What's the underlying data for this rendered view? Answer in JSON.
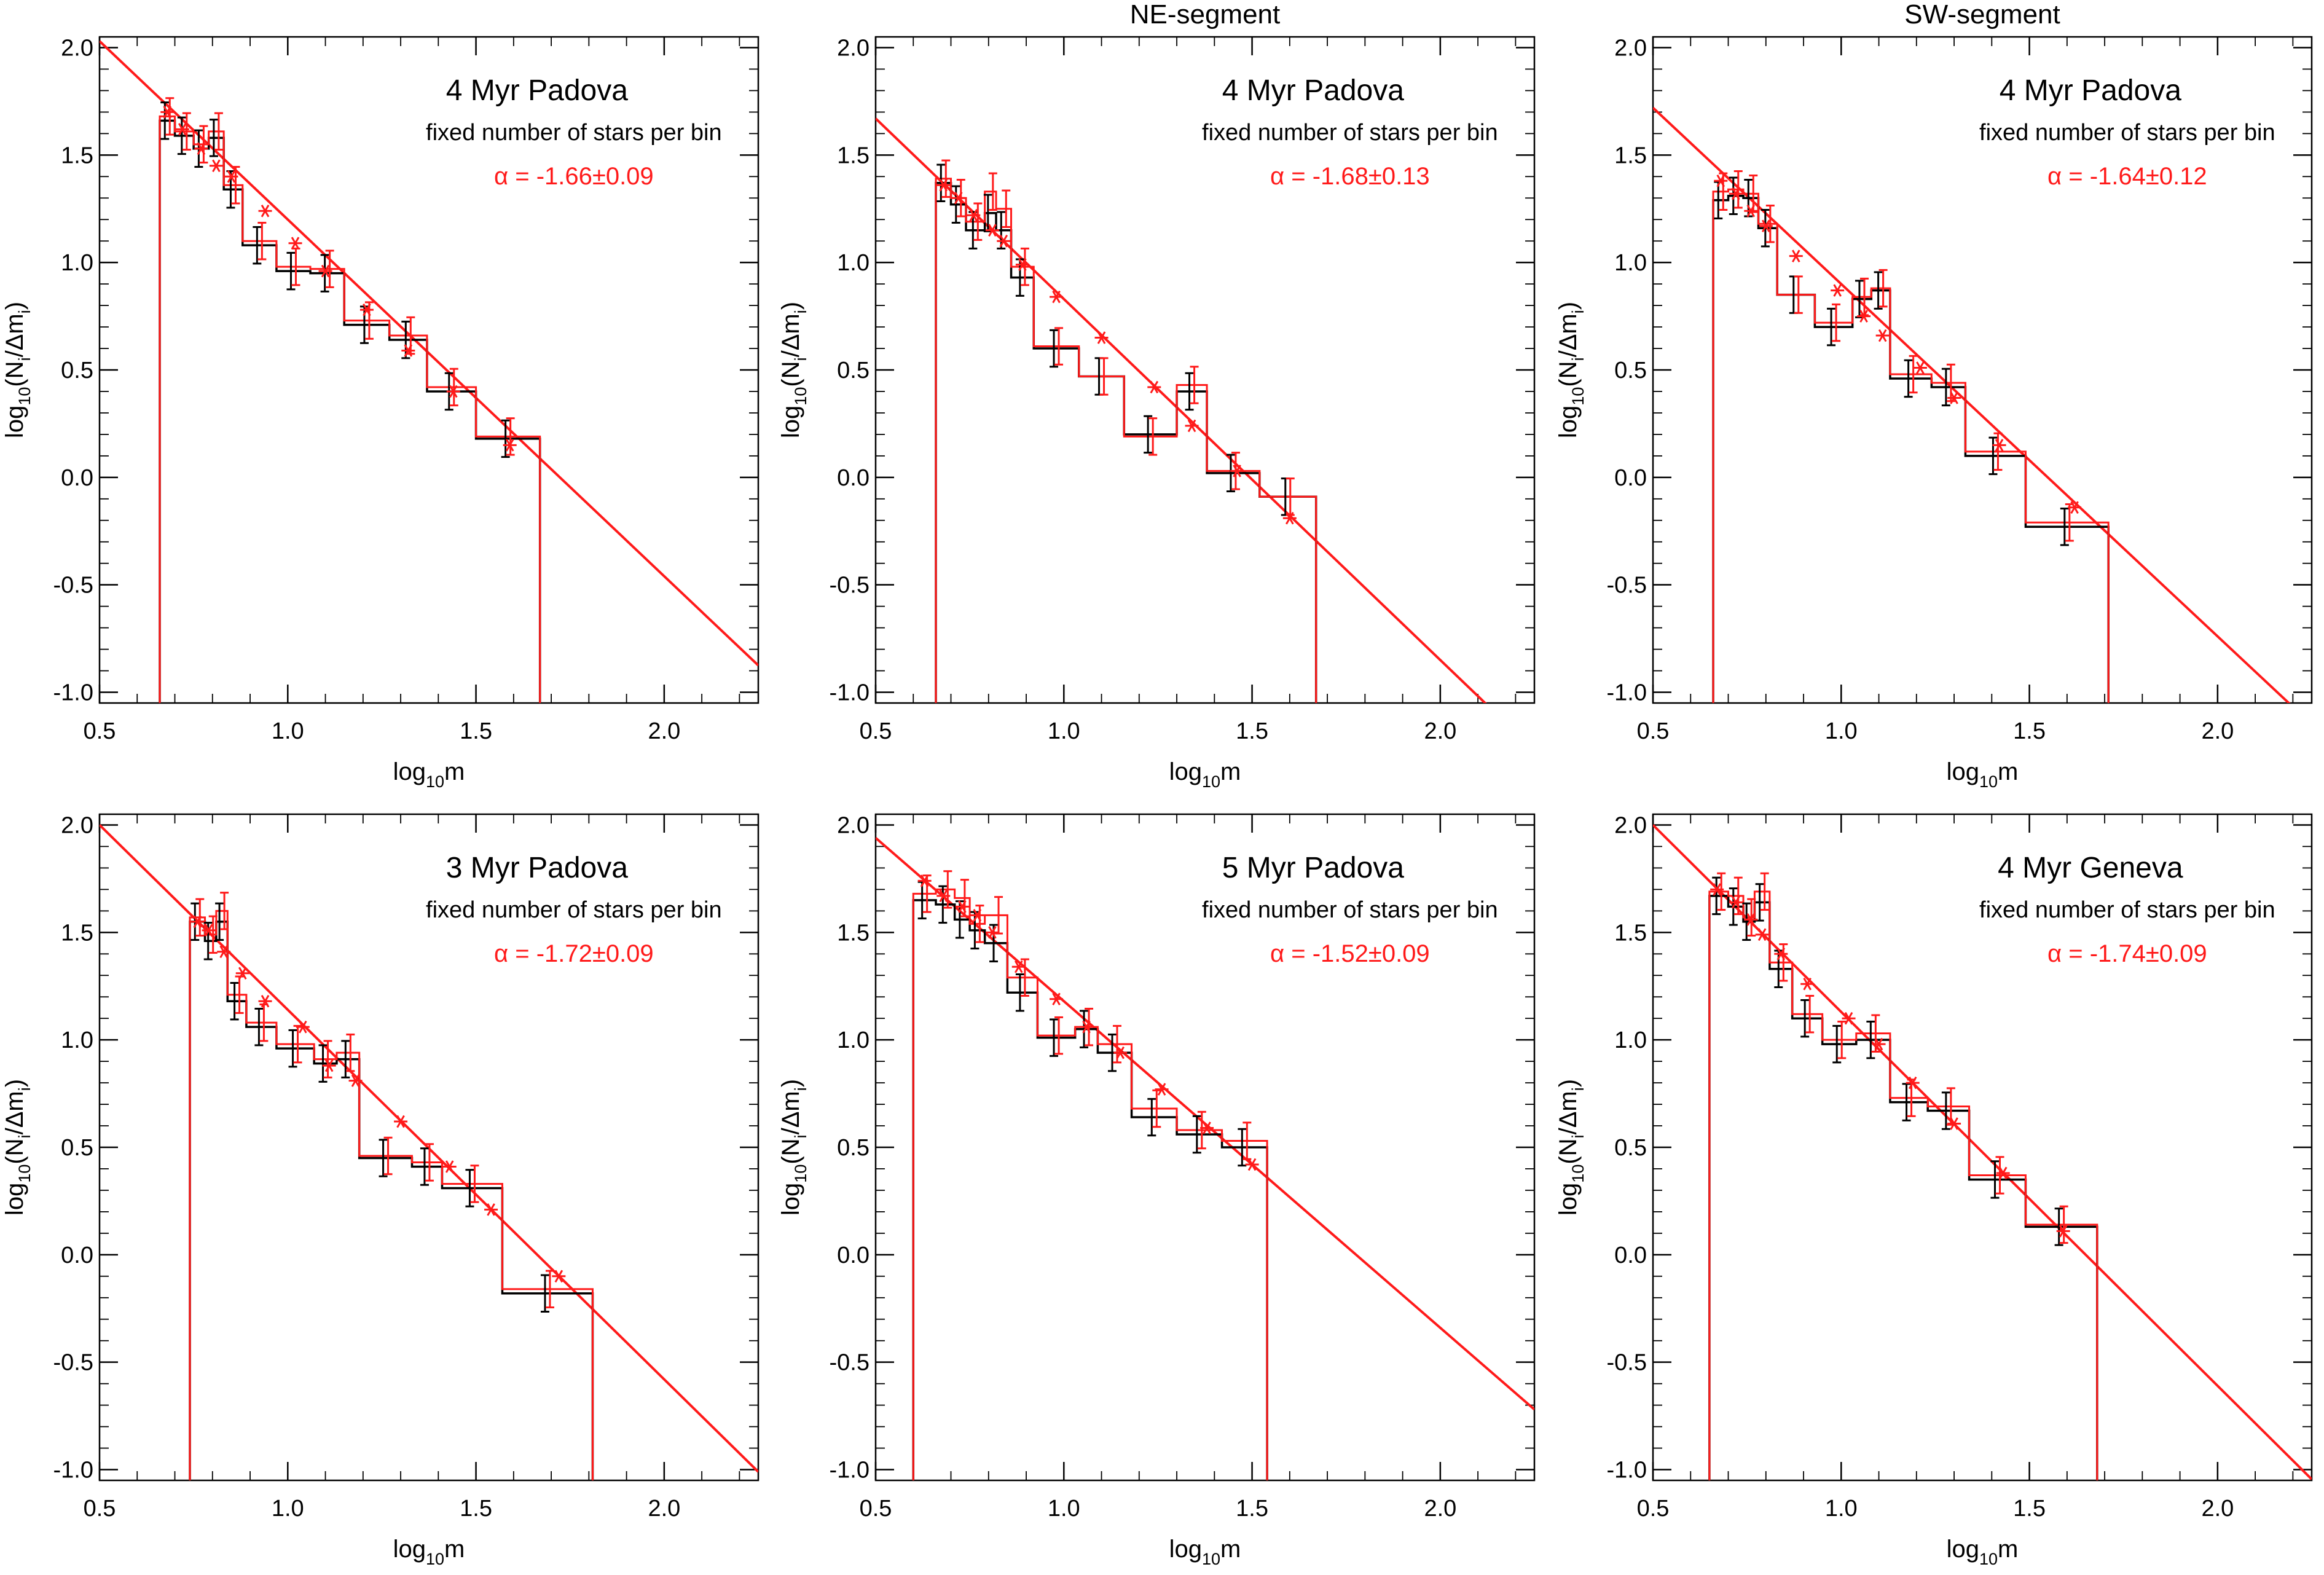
{
  "colors": {
    "fit": "#ff1a1a",
    "hist_black": "#000000",
    "hist_red": "#ff1a1a",
    "axis": "#000000"
  },
  "chart_data": [
    {
      "type": "line",
      "title": "",
      "xlabel": "log10m",
      "ylabel": "log10(Ni/Δmi)",
      "xlim": [
        0.5,
        2.25
      ],
      "ylim": [
        -1.05,
        2.05
      ],
      "xticks": [
        "0.5",
        "1.0",
        "1.5",
        "2.0"
      ],
      "yticks": [
        "-1.0",
        "-0.5",
        "0.0",
        "0.5",
        "1.0",
        "1.5",
        "2.0"
      ],
      "annotations": {
        "model": "4 Myr Padova",
        "method": "fixed number of stars per bin",
        "alpha": "α = -1.66±0.09"
      },
      "fit_line": {
        "slope": -1.66,
        "intercept": 2.86
      },
      "bins_black": [
        [
          0.66,
          0.7,
          1.66
        ],
        [
          0.7,
          0.75,
          1.59
        ],
        [
          0.75,
          0.79,
          1.53
        ],
        [
          0.79,
          0.83,
          1.58
        ],
        [
          0.83,
          0.88,
          1.34
        ],
        [
          0.88,
          0.97,
          1.08
        ],
        [
          0.97,
          1.06,
          0.96
        ],
        [
          1.06,
          1.15,
          0.95
        ],
        [
          1.15,
          1.27,
          0.71
        ],
        [
          1.27,
          1.37,
          0.64
        ],
        [
          1.37,
          1.5,
          0.4
        ],
        [
          1.5,
          1.67,
          0.18
        ]
      ],
      "bins_red": [
        [
          0.66,
          0.7,
          1.68
        ],
        [
          0.7,
          0.75,
          1.61
        ],
        [
          0.75,
          0.79,
          1.55
        ],
        [
          0.79,
          0.83,
          1.61
        ],
        [
          0.83,
          0.88,
          1.36
        ],
        [
          0.88,
          0.97,
          1.1
        ],
        [
          0.97,
          1.06,
          0.98
        ],
        [
          1.06,
          1.15,
          0.97
        ],
        [
          1.15,
          1.27,
          0.73
        ],
        [
          1.27,
          1.37,
          0.66
        ],
        [
          1.37,
          1.5,
          0.42
        ],
        [
          1.5,
          1.67,
          0.19
        ]
      ],
      "stars": [
        [
          0.68,
          1.7
        ],
        [
          0.72,
          1.62
        ],
        [
          0.77,
          1.53
        ],
        [
          0.81,
          1.45
        ],
        [
          0.85,
          1.4
        ],
        [
          0.94,
          1.24
        ],
        [
          1.02,
          1.09
        ],
        [
          1.1,
          0.96
        ],
        [
          1.21,
          0.78
        ],
        [
          1.32,
          0.59
        ],
        [
          1.44,
          0.4
        ],
        [
          1.59,
          0.15
        ]
      ]
    },
    {
      "type": "line",
      "title": "NE-segment",
      "xlabel": "log10m",
      "ylabel": "log10(Ni/Δmi)",
      "xlim": [
        0.5,
        2.25
      ],
      "ylim": [
        -1.05,
        2.05
      ],
      "xticks": [
        "0.5",
        "1.0",
        "1.5",
        "2.0"
      ],
      "yticks": [
        "-1.0",
        "-0.5",
        "0.0",
        "0.5",
        "1.0",
        "1.5",
        "2.0"
      ],
      "annotations": {
        "model": "4 Myr Padova",
        "method": "fixed number of stars per bin",
        "alpha": "α = -1.68±0.13"
      },
      "fit_line": {
        "slope": -1.68,
        "intercept": 2.51
      },
      "bins_black": [
        [
          0.66,
          0.7,
          1.37
        ],
        [
          0.7,
          0.74,
          1.27
        ],
        [
          0.74,
          0.79,
          1.15
        ],
        [
          0.79,
          0.82,
          1.23
        ],
        [
          0.82,
          0.86,
          1.15
        ],
        [
          0.86,
          0.92,
          0.93
        ],
        [
          0.92,
          1.04,
          0.6
        ],
        [
          1.04,
          1.16,
          0.47
        ],
        [
          1.16,
          1.3,
          0.2
        ],
        [
          1.3,
          1.38,
          0.4
        ],
        [
          1.38,
          1.52,
          0.02
        ],
        [
          1.52,
          1.67,
          -0.09
        ]
      ],
      "bins_red": [
        [
          0.66,
          0.7,
          1.39
        ],
        [
          0.7,
          0.74,
          1.3
        ],
        [
          0.74,
          0.79,
          1.19
        ],
        [
          0.79,
          0.82,
          1.33
        ],
        [
          0.82,
          0.86,
          1.25
        ],
        [
          0.86,
          0.92,
          0.98
        ],
        [
          0.92,
          1.04,
          0.61
        ],
        [
          1.04,
          1.16,
          0.47
        ],
        [
          1.16,
          1.3,
          0.19
        ],
        [
          1.3,
          1.38,
          0.43
        ],
        [
          1.38,
          1.52,
          0.03
        ],
        [
          1.52,
          1.67,
          -0.09
        ]
      ],
      "stars": [
        [
          0.68,
          1.36
        ],
        [
          0.72,
          1.3
        ],
        [
          0.76,
          1.22
        ],
        [
          0.81,
          1.15
        ],
        [
          0.84,
          1.1
        ],
        [
          0.89,
          0.99
        ],
        [
          0.98,
          0.84
        ],
        [
          1.1,
          0.65
        ],
        [
          1.24,
          0.42
        ],
        [
          1.34,
          0.24
        ],
        [
          1.46,
          0.03
        ],
        [
          1.6,
          -0.19
        ]
      ]
    },
    {
      "type": "line",
      "title": "SW-segment",
      "xlabel": "log10m",
      "ylabel": "log10(Ni/Δmi)",
      "xlim": [
        0.5,
        2.25
      ],
      "ylim": [
        -1.05,
        2.05
      ],
      "xticks": [
        "0.5",
        "1.0",
        "1.5",
        "2.0"
      ],
      "yticks": [
        "-1.0",
        "-0.5",
        "0.0",
        "0.5",
        "1.0",
        "1.5",
        "2.0"
      ],
      "annotations": {
        "model": "4 Myr Padova",
        "method": "fixed number of stars per bin",
        "alpha": "α = -1.64±0.12"
      },
      "fit_line": {
        "slope": -1.64,
        "intercept": 2.54
      },
      "bins_black": [
        [
          0.66,
          0.7,
          1.29
        ],
        [
          0.7,
          0.74,
          1.31
        ],
        [
          0.74,
          0.78,
          1.3
        ],
        [
          0.78,
          0.83,
          1.16
        ],
        [
          0.83,
          0.93,
          0.85
        ],
        [
          0.93,
          1.03,
          0.7
        ],
        [
          1.03,
          1.08,
          0.83
        ],
        [
          1.08,
          1.13,
          0.87
        ],
        [
          1.13,
          1.24,
          0.46
        ],
        [
          1.24,
          1.33,
          0.42
        ],
        [
          1.33,
          1.49,
          0.1
        ],
        [
          1.49,
          1.71,
          -0.23
        ]
      ],
      "bins_red": [
        [
          0.66,
          0.7,
          1.33
        ],
        [
          0.7,
          0.74,
          1.34
        ],
        [
          0.74,
          0.78,
          1.32
        ],
        [
          0.78,
          0.83,
          1.18
        ],
        [
          0.83,
          0.93,
          0.85
        ],
        [
          0.93,
          1.03,
          0.72
        ],
        [
          1.03,
          1.08,
          0.84
        ],
        [
          1.08,
          1.13,
          0.88
        ],
        [
          1.13,
          1.24,
          0.48
        ],
        [
          1.24,
          1.33,
          0.44
        ],
        [
          1.33,
          1.49,
          0.12
        ],
        [
          1.49,
          1.71,
          -0.21
        ]
      ],
      "stars": [
        [
          0.68,
          1.38
        ],
        [
          0.72,
          1.32
        ],
        [
          0.76,
          1.24
        ],
        [
          0.8,
          1.17
        ],
        [
          0.88,
          1.03
        ],
        [
          0.99,
          0.87
        ],
        [
          1.06,
          0.75
        ],
        [
          1.11,
          0.66
        ],
        [
          1.21,
          0.51
        ],
        [
          1.3,
          0.37
        ],
        [
          1.42,
          0.15
        ],
        [
          1.62,
          -0.14
        ]
      ]
    },
    {
      "type": "line",
      "title": "",
      "xlabel": "log10m",
      "ylabel": "log10(Ni/Δmi)",
      "xlim": [
        0.5,
        2.25
      ],
      "ylim": [
        -1.05,
        2.05
      ],
      "xticks": [
        "0.5",
        "1.0",
        "1.5",
        "2.0"
      ],
      "yticks": [
        "-1.0",
        "-0.5",
        "0.0",
        "0.5",
        "1.0",
        "1.5",
        "2.0"
      ],
      "annotations": {
        "model": "3 Myr Padova",
        "method": "fixed number of stars per bin",
        "alpha": "α = -1.72±0.09"
      },
      "fit_line": {
        "slope": -1.72,
        "intercept": 2.86
      },
      "bins_black": [
        [
          0.74,
          0.78,
          1.55
        ],
        [
          0.78,
          0.81,
          1.46
        ],
        [
          0.81,
          0.84,
          1.55
        ],
        [
          0.84,
          0.89,
          1.18
        ],
        [
          0.89,
          0.97,
          1.06
        ],
        [
          0.97,
          1.07,
          0.96
        ],
        [
          1.07,
          1.13,
          0.89
        ],
        [
          1.13,
          1.19,
          0.91
        ],
        [
          1.19,
          1.33,
          0.45
        ],
        [
          1.33,
          1.41,
          0.41
        ],
        [
          1.41,
          1.57,
          0.31
        ],
        [
          1.57,
          1.81,
          -0.18
        ]
      ],
      "bins_red": [
        [
          0.74,
          0.78,
          1.57
        ],
        [
          0.78,
          0.81,
          1.49
        ],
        [
          0.81,
          0.84,
          1.6
        ],
        [
          0.84,
          0.89,
          1.21
        ],
        [
          0.89,
          0.97,
          1.08
        ],
        [
          0.97,
          1.07,
          0.98
        ],
        [
          1.07,
          1.13,
          0.91
        ],
        [
          1.13,
          1.19,
          0.94
        ],
        [
          1.19,
          1.33,
          0.46
        ],
        [
          1.33,
          1.41,
          0.43
        ],
        [
          1.41,
          1.57,
          0.33
        ],
        [
          1.57,
          1.81,
          -0.16
        ]
      ],
      "stars": [
        [
          0.76,
          1.55
        ],
        [
          0.79,
          1.51
        ],
        [
          0.83,
          1.41
        ],
        [
          0.88,
          1.31
        ],
        [
          0.94,
          1.18
        ],
        [
          1.04,
          1.06
        ],
        [
          1.11,
          0.88
        ],
        [
          1.18,
          0.81
        ],
        [
          1.3,
          0.62
        ],
        [
          1.43,
          0.41
        ],
        [
          1.54,
          0.21
        ],
        [
          1.72,
          -0.1
        ]
      ]
    },
    {
      "type": "line",
      "title": "",
      "xlabel": "log10m",
      "ylabel": "log10(Ni/Δmi)",
      "xlim": [
        0.5,
        2.25
      ],
      "ylim": [
        -1.05,
        2.05
      ],
      "xticks": [
        "0.5",
        "1.0",
        "1.5",
        "2.0"
      ],
      "yticks": [
        "-1.0",
        "-0.5",
        "0.0",
        "0.5",
        "1.0",
        "1.5",
        "2.0"
      ],
      "annotations": {
        "model": "5 Myr Padova",
        "method": "fixed number of stars per bin",
        "alpha": "α = -1.52±0.09"
      },
      "fit_line": {
        "slope": -1.52,
        "intercept": 2.7
      },
      "bins_black": [
        [
          0.6,
          0.66,
          1.65
        ],
        [
          0.66,
          0.71,
          1.63
        ],
        [
          0.71,
          0.75,
          1.56
        ],
        [
          0.75,
          0.79,
          1.51
        ],
        [
          0.79,
          0.85,
          1.45
        ],
        [
          0.85,
          0.93,
          1.22
        ],
        [
          0.93,
          1.03,
          1.01
        ],
        [
          1.03,
          1.09,
          1.05
        ],
        [
          1.09,
          1.18,
          0.94
        ],
        [
          1.18,
          1.3,
          0.64
        ],
        [
          1.3,
          1.42,
          0.56
        ],
        [
          1.42,
          1.54,
          0.5
        ]
      ],
      "bins_red": [
        [
          0.6,
          0.66,
          1.68
        ],
        [
          0.66,
          0.71,
          1.7
        ],
        [
          0.71,
          0.75,
          1.66
        ],
        [
          0.75,
          0.79,
          1.54
        ],
        [
          0.79,
          0.85,
          1.58
        ],
        [
          0.85,
          0.93,
          1.29
        ],
        [
          0.93,
          1.03,
          1.02
        ],
        [
          1.03,
          1.09,
          1.06
        ],
        [
          1.09,
          1.18,
          0.98
        ],
        [
          1.18,
          1.3,
          0.68
        ],
        [
          1.3,
          1.42,
          0.58
        ],
        [
          1.42,
          1.54,
          0.53
        ]
      ],
      "stars": [
        [
          0.63,
          1.74
        ],
        [
          0.68,
          1.67
        ],
        [
          0.73,
          1.62
        ],
        [
          0.77,
          1.58
        ],
        [
          0.81,
          1.5
        ],
        [
          0.88,
          1.34
        ],
        [
          0.98,
          1.19
        ],
        [
          1.06,
          1.06
        ],
        [
          1.15,
          0.94
        ],
        [
          1.26,
          0.77
        ],
        [
          1.38,
          0.59
        ],
        [
          1.5,
          0.42
        ]
      ]
    },
    {
      "type": "line",
      "title": "",
      "xlabel": "log10m",
      "ylabel": "log10(Ni/Δmi)",
      "xlim": [
        0.5,
        2.25
      ],
      "ylim": [
        -1.05,
        2.05
      ],
      "xticks": [
        "0.5",
        "1.0",
        "1.5",
        "2.0"
      ],
      "yticks": [
        "-1.0",
        "-0.5",
        "0.0",
        "0.5",
        "1.0",
        "1.5",
        "2.0"
      ],
      "annotations": {
        "model": "4 Myr Geneva",
        "method": "fixed number of stars per bin",
        "alpha": "α = -1.74±0.09"
      },
      "fit_line": {
        "slope": -1.74,
        "intercept": 2.87
      },
      "bins_black": [
        [
          0.65,
          0.7,
          1.67
        ],
        [
          0.7,
          0.74,
          1.62
        ],
        [
          0.74,
          0.77,
          1.55
        ],
        [
          0.77,
          0.81,
          1.64
        ],
        [
          0.81,
          0.87,
          1.33
        ],
        [
          0.87,
          0.95,
          1.1
        ],
        [
          0.95,
          1.04,
          0.98
        ],
        [
          1.04,
          1.13,
          1.0
        ],
        [
          1.13,
          1.23,
          0.71
        ],
        [
          1.23,
          1.34,
          0.67
        ],
        [
          1.34,
          1.49,
          0.35
        ],
        [
          1.49,
          1.68,
          0.13
        ]
      ],
      "bins_red": [
        [
          0.65,
          0.7,
          1.69
        ],
        [
          0.7,
          0.74,
          1.67
        ],
        [
          0.74,
          0.77,
          1.57
        ],
        [
          0.77,
          0.81,
          1.69
        ],
        [
          0.81,
          0.87,
          1.36
        ],
        [
          0.87,
          0.95,
          1.12
        ],
        [
          0.95,
          1.04,
          1.0
        ],
        [
          1.04,
          1.13,
          1.03
        ],
        [
          1.13,
          1.23,
          0.73
        ],
        [
          1.23,
          1.34,
          0.69
        ],
        [
          1.34,
          1.49,
          0.37
        ],
        [
          1.49,
          1.68,
          0.14
        ]
      ],
      "stars": [
        [
          0.67,
          1.7
        ],
        [
          0.72,
          1.64
        ],
        [
          0.76,
          1.56
        ],
        [
          0.79,
          1.49
        ],
        [
          0.84,
          1.4
        ],
        [
          0.91,
          1.26
        ],
        [
          1.02,
          1.1
        ],
        [
          1.1,
          0.98
        ],
        [
          1.19,
          0.8
        ],
        [
          1.3,
          0.61
        ],
        [
          1.43,
          0.38
        ],
        [
          1.59,
          0.11
        ]
      ]
    }
  ]
}
